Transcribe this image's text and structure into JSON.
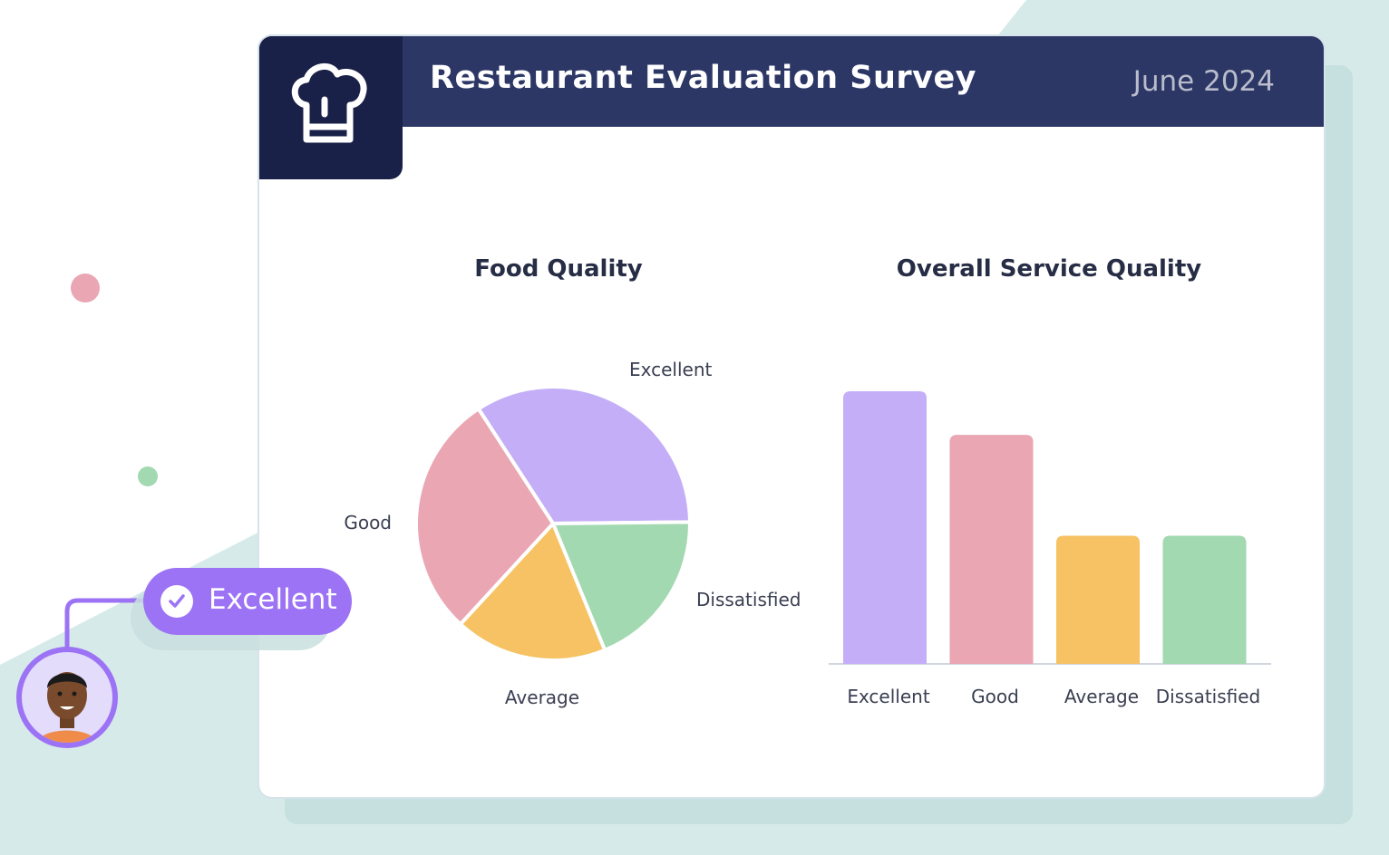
{
  "header": {
    "title": "Restaurant Evaluation Survey",
    "date": "June 2024",
    "logo_icon": "chef-hat-icon"
  },
  "badge": {
    "label": "Excellent",
    "icon": "check-circle-icon",
    "color": "#9c73f5"
  },
  "colors": {
    "header": "#2c3766",
    "logo_bg": "#1a2148",
    "background_accent": "#d6eaea"
  },
  "chart_data": [
    {
      "type": "pie",
      "title": "Food Quality",
      "categories": [
        "Excellent",
        "Dissatisfied",
        "Average",
        "Good"
      ],
      "values": [
        34,
        19,
        18,
        29
      ],
      "colors": [
        "#c4aef7",
        "#a2d9b1",
        "#f6c263",
        "#eaa6b3"
      ]
    },
    {
      "type": "bar",
      "title": "Overall Service Quality",
      "categories": [
        "Excellent",
        "Good",
        "Average",
        "Dissatisfied"
      ],
      "values": [
        100,
        84,
        47,
        47
      ],
      "ylim": [
        0,
        100
      ],
      "grid": false,
      "colors": [
        "#c4aef7",
        "#eaa6b3",
        "#f6c263",
        "#a2d9b1"
      ]
    }
  ]
}
